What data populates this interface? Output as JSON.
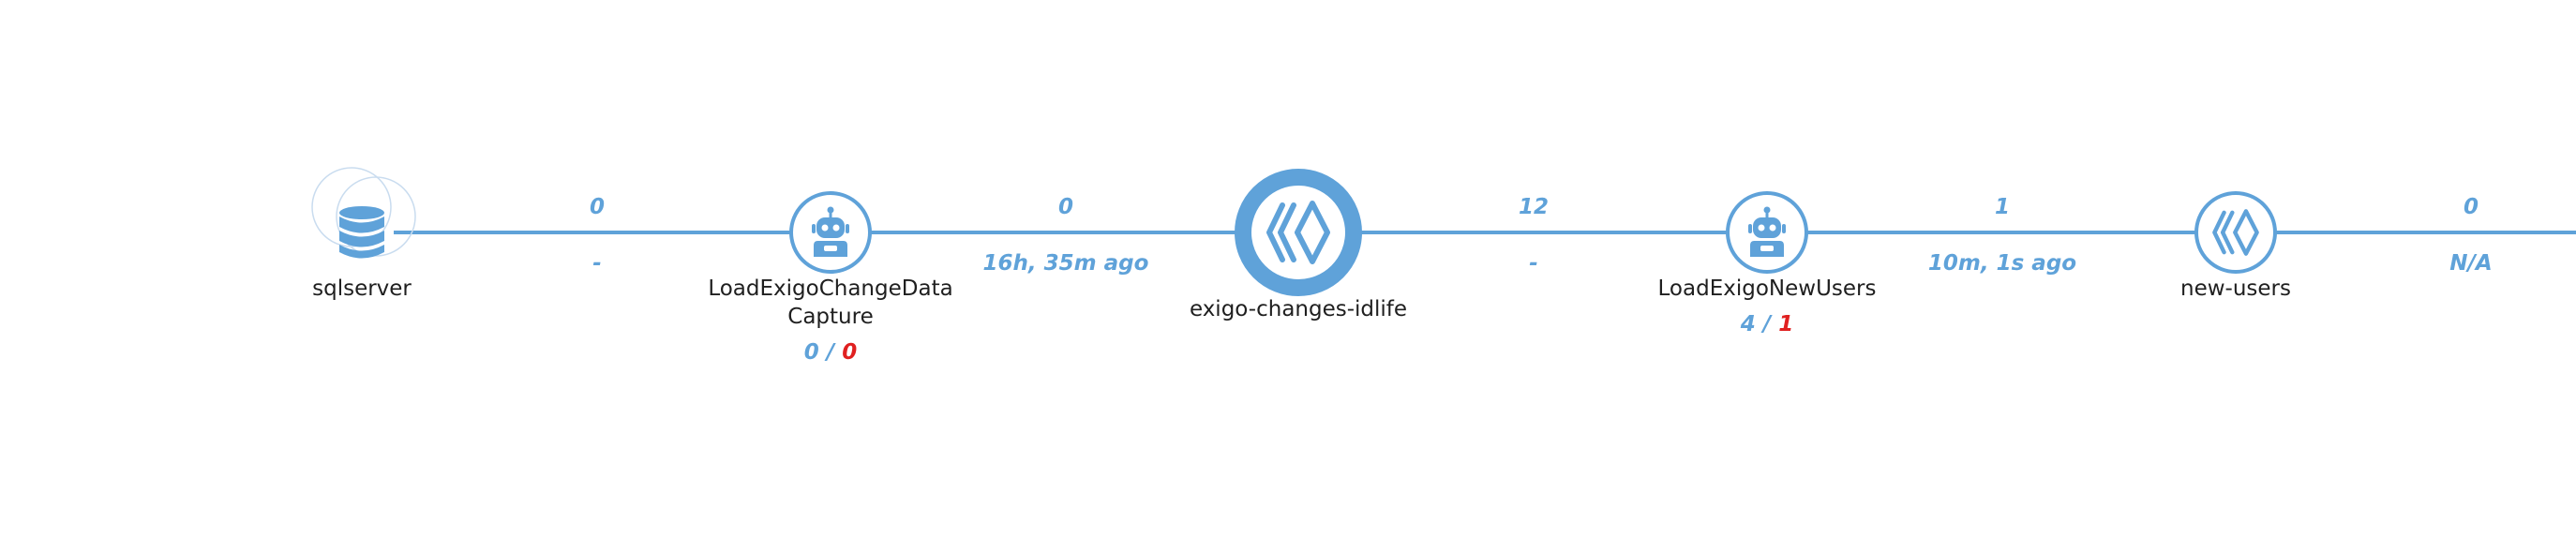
{
  "colors": {
    "accent": "#5fa2d9",
    "error": "#e02020",
    "text": "#1f1f1f",
    "background": "#ffffff"
  },
  "nodes": [
    {
      "id": "sqlserver",
      "label": "sqlserver",
      "icon": "database-icon"
    },
    {
      "id": "load-cdc",
      "label_line1": "LoadExigoChangeData",
      "label_line2": "Capture",
      "icon": "robot-icon",
      "count_ok": "0",
      "count_sep": " / ",
      "count_err": "0"
    },
    {
      "id": "topic-changes",
      "label": "exigo-changes-idlife",
      "icon": "stream-icon"
    },
    {
      "id": "load-users",
      "label": "LoadExigoNewUsers",
      "icon": "robot-icon",
      "count_ok": "4",
      "count_sep": " / ",
      "count_err": "1"
    },
    {
      "id": "topic-users",
      "label": "new-users",
      "icon": "stream-icon"
    }
  ],
  "edges": [
    {
      "count": "0",
      "time": "-"
    },
    {
      "count": "0",
      "time": "16h, 35m ago"
    },
    {
      "count": "12",
      "time": "-"
    },
    {
      "count": "1",
      "time": "10m, 1s ago"
    },
    {
      "count": "0",
      "time": "N/A"
    }
  ]
}
